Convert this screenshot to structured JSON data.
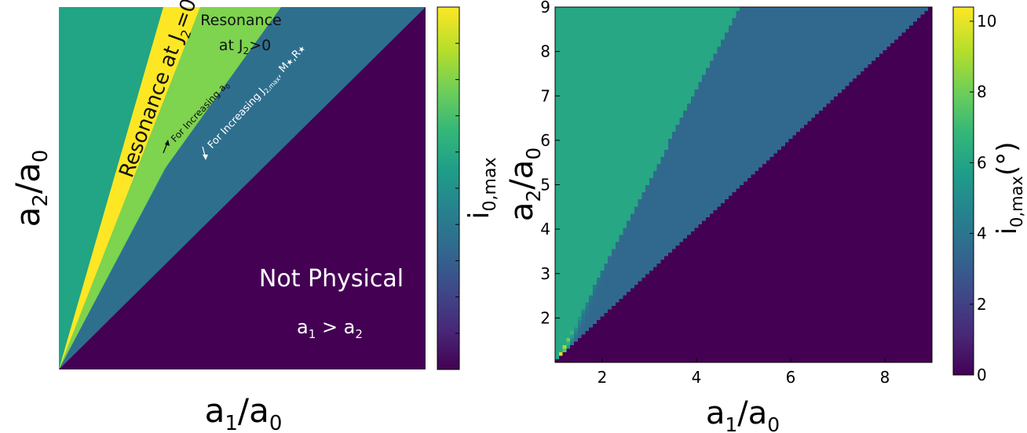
{
  "colors": {
    "viridis": [
      "#440154",
      "#482878",
      "#3e4989",
      "#31688e",
      "#26828e",
      "#1f9e89",
      "#35b779",
      "#6ece58",
      "#b5de2b",
      "#fde725"
    ],
    "not_physical": "#440154",
    "blue_region": "#2f6f8e",
    "teal_region": "#21a585",
    "green_region": "#7ed34f",
    "yellow_region": "#fde725"
  },
  "chart_data": [
    {
      "type": "diagram",
      "xlabel_main": "a",
      "xlabel_sub1": "1",
      "xlabel_mid": "/a",
      "xlabel_sub2": "0",
      "ylabel_main": "a",
      "ylabel_sub1": "2",
      "ylabel_mid": "/a",
      "ylabel_sub2": "0",
      "regions": {
        "not_physical_title": "Not Physical",
        "not_physical_cond_a": "a",
        "not_physical_cond_sub1": "1",
        "not_physical_cond_gt": " > a",
        "not_physical_cond_sub2": "2",
        "resonance_j2_zero_main": "Resonance at J",
        "resonance_j2_zero_sub": "2",
        "resonance_j2_zero_tail": "=0",
        "resonance_j2_pos_line1": "Resonance",
        "resonance_j2_pos_line2_main": "at J",
        "resonance_j2_pos_line2_sub": "2",
        "resonance_j2_pos_line2_tail": ">0"
      },
      "arrows": {
        "increase_a0_main": "For Increasing a",
        "increase_a0_sub": "0",
        "increase_j2_main": "For Increasing J",
        "increase_j2_sub": "2,max",
        "increase_j2_tail": ", M",
        "increase_j2_star1": "★",
        "increase_j2_r": ",R",
        "increase_j2_star2": "★"
      },
      "colorbar": {
        "label_main": "i",
        "label_sub": "0,max"
      }
    },
    {
      "type": "heatmap",
      "xlabel_main": "a",
      "xlabel_sub1": "1",
      "xlabel_mid": "/a",
      "xlabel_sub2": "0",
      "ylabel_main": "a",
      "ylabel_sub1": "2",
      "ylabel_mid": "/a",
      "ylabel_sub2": "0",
      "xlim": [
        1,
        9
      ],
      "ylim": [
        1,
        9
      ],
      "xticks": [
        2,
        4,
        6,
        8
      ],
      "yticks": [
        2,
        3,
        4,
        5,
        6,
        7,
        8,
        9
      ],
      "colorbar": {
        "label_main": "i",
        "label_sub": "0,max",
        "label_tail": "(°)",
        "range": [
          0,
          10.4
        ],
        "ticks": [
          0,
          2,
          4,
          6,
          8,
          10
        ]
      }
    }
  ]
}
